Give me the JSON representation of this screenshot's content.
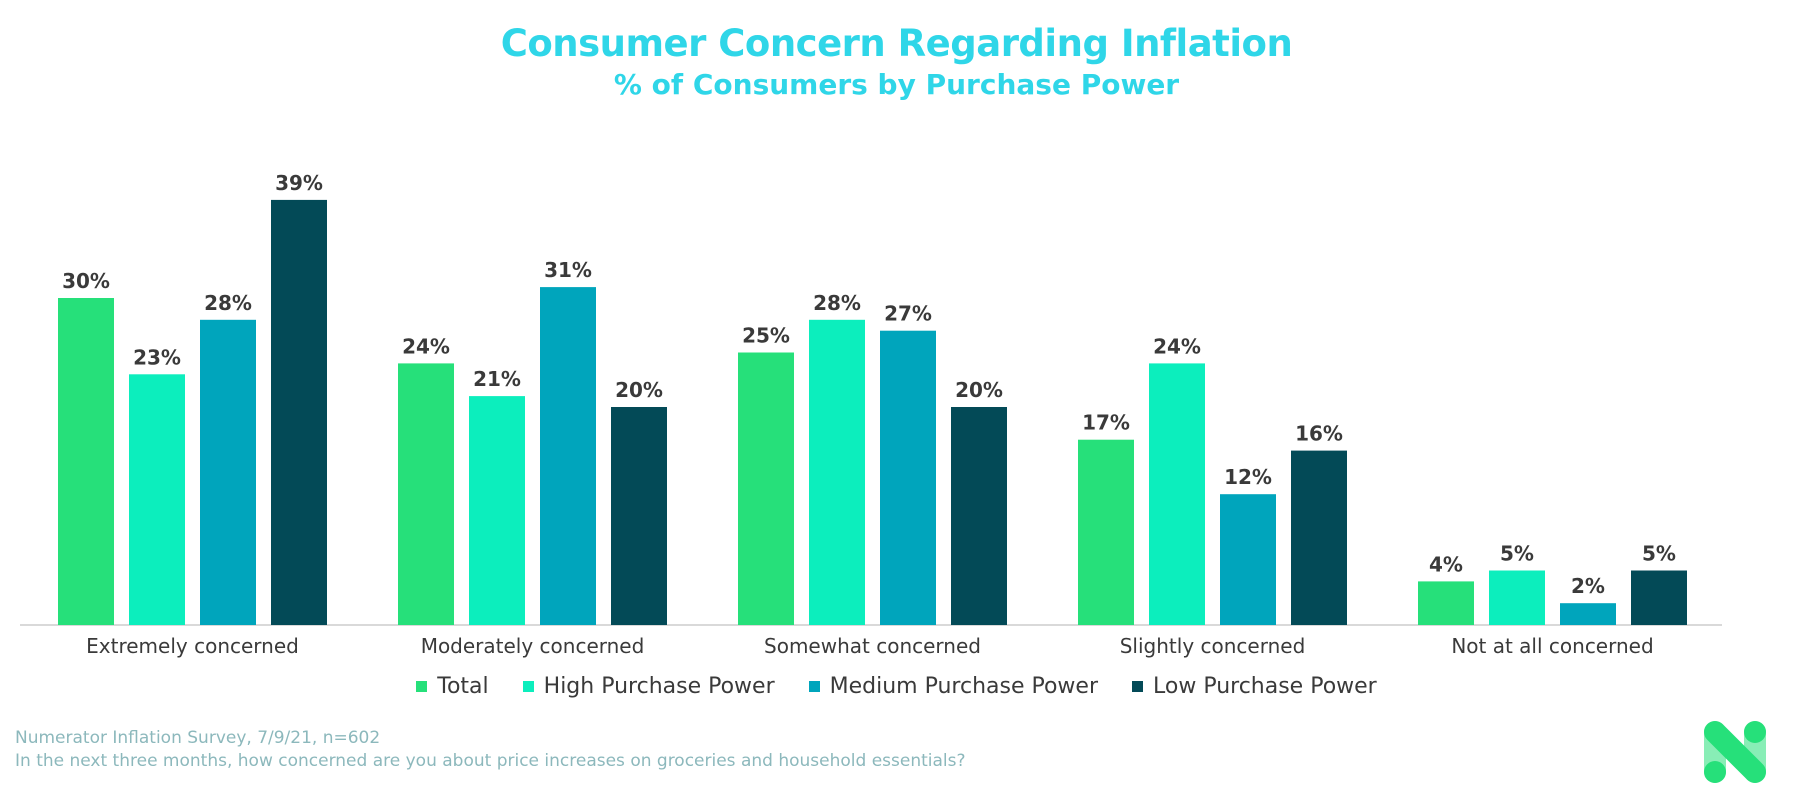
{
  "chart_data": {
    "type": "bar",
    "title": "Consumer Concern Regarding Inflation",
    "subtitle": "% of Consumers by Purchase Power",
    "categories": [
      "Extremely concerned",
      "Moderately concerned",
      "Somewhat concerned",
      "Slightly concerned",
      "Not at all concerned"
    ],
    "series": [
      {
        "name": "Total",
        "color": "#26e07a",
        "values": [
          30,
          24,
          25,
          17,
          4
        ]
      },
      {
        "name": "High Purchase Power",
        "color": "#0ceebd",
        "values": [
          23,
          21,
          28,
          24,
          5
        ]
      },
      {
        "name": "Medium Purchase Power",
        "color": "#00a5bc",
        "values": [
          28,
          31,
          27,
          12,
          2
        ]
      },
      {
        "name": "Low Purchase Power",
        "color": "#034a57",
        "values": [
          39,
          20,
          20,
          16,
          5
        ]
      }
    ],
    "value_suffix": "%",
    "ylim": [
      0,
      39
    ],
    "legend_position": "bottom",
    "grid": false
  },
  "source": {
    "line1": "Numerator Inflation Survey, 7/9/21, n=602",
    "line2": "In the next three months, how concerned are you about price increases on groceries and household essentials?"
  },
  "logo": {
    "icon": "numerator-n-logo",
    "color": "#26e07a"
  }
}
